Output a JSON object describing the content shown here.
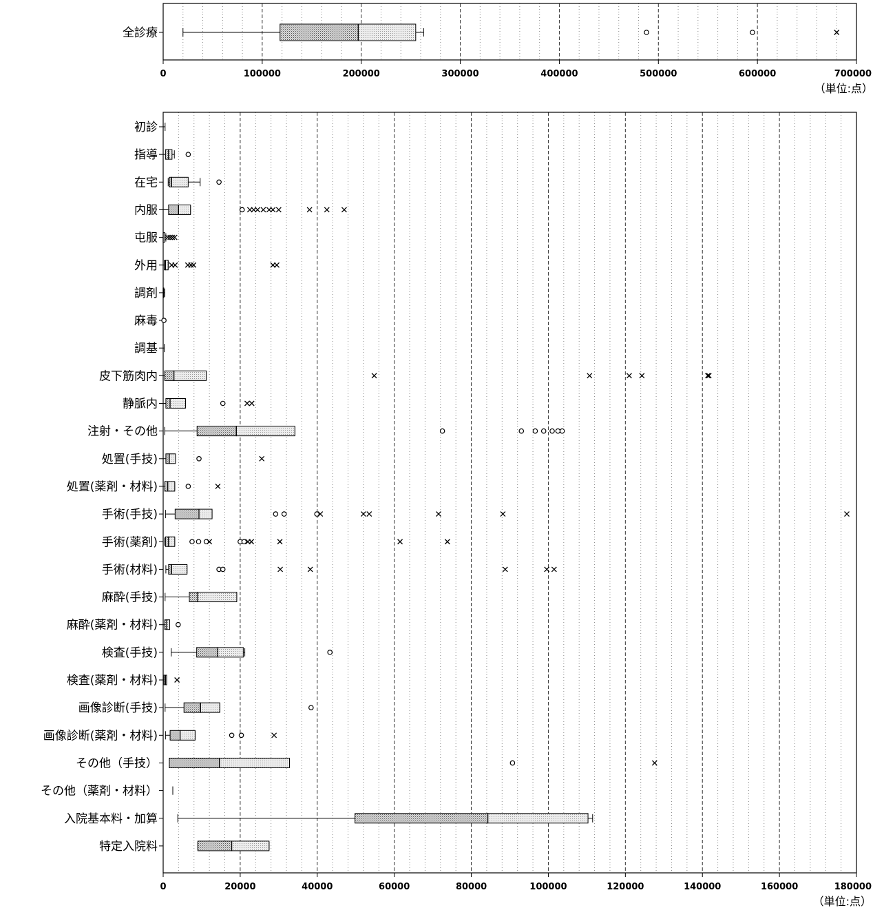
{
  "chart_data": [
    {
      "type": "boxplot",
      "unit_label": "（単位:点）",
      "xlim": [
        0,
        700000
      ],
      "ticks": [
        0,
        100000,
        200000,
        300000,
        400000,
        500000,
        600000,
        700000
      ],
      "categories": [
        {
          "label": "全診療",
          "whisker_low": 20000,
          "q1": 118000,
          "median": 197000,
          "q3": 255000,
          "whisker_high": 263000,
          "outliers_circle": [
            488000,
            595000
          ],
          "outliers_x": [
            680000
          ]
        }
      ]
    },
    {
      "type": "boxplot",
      "unit_label": "（単位:点）",
      "xlim": [
        0,
        180000
      ],
      "ticks": [
        0,
        20000,
        40000,
        60000,
        80000,
        100000,
        120000,
        140000,
        160000,
        180000
      ],
      "categories": [
        {
          "label": "初診",
          "whisker_low": 0,
          "q1": 0,
          "median": 0,
          "q3": 0,
          "whisker_high": 500,
          "outliers_circle": [],
          "outliers_x": []
        },
        {
          "label": "指導",
          "whisker_low": 0,
          "q1": 600,
          "median": 1400,
          "q3": 2300,
          "whisker_high": 2900,
          "outliers_circle": [
            6500
          ],
          "outliers_x": []
        },
        {
          "label": "在宅",
          "whisker_low": 1300,
          "q1": 1600,
          "median": 2200,
          "q3": 6500,
          "whisker_high": 9600,
          "outliers_circle": [
            14500
          ],
          "outliers_x": []
        },
        {
          "label": "内服",
          "whisker_low": 0,
          "q1": 1400,
          "median": 4000,
          "q3": 7100,
          "whisker_high": 7100,
          "outliers_circle": [
            20500
          ],
          "outliers_x": [
            22500,
            23500,
            24500,
            26000,
            27500,
            28500,
            30000,
            38000,
            42500,
            47000
          ]
        },
        {
          "label": "屯服",
          "whisker_low": 0,
          "q1": 0,
          "median": 0,
          "q3": 400,
          "whisker_high": 700,
          "outliers_circle": [],
          "outliers_x": [
            1200,
            1800,
            2400,
            3000
          ]
        },
        {
          "label": "外用",
          "whisker_low": 0,
          "q1": 300,
          "median": 600,
          "q3": 1300,
          "whisker_high": 1300,
          "outliers_circle": [],
          "outliers_x": [
            2200,
            3100,
            6400,
            7200,
            7900,
            28500,
            29500
          ]
        },
        {
          "label": "調剤",
          "whisker_low": 0,
          "q1": 0,
          "median": 0,
          "q3": 100,
          "whisker_high": 400,
          "outliers_circle": [],
          "outliers_x": []
        },
        {
          "label": "麻毒",
          "whisker_low": 0,
          "q1": 0,
          "median": 0,
          "q3": 0,
          "whisker_high": 0,
          "outliers_circle": [
            200
          ],
          "outliers_x": []
        },
        {
          "label": "調基",
          "whisker_low": 0,
          "q1": 0,
          "median": 0,
          "q3": 0,
          "whisker_high": 300,
          "outliers_circle": [],
          "outliers_x": []
        },
        {
          "label": "皮下筋肉内",
          "whisker_low": 0,
          "q1": 400,
          "median": 2800,
          "q3": 11200,
          "whisker_high": 11200,
          "outliers_circle": [],
          "outliers_x": [
            54800,
            110700,
            121000,
            124300,
            141400,
            141700
          ]
        },
        {
          "label": "静脈内",
          "whisker_low": 0,
          "q1": 700,
          "median": 1800,
          "q3": 5800,
          "whisker_high": 5800,
          "outliers_circle": [
            15500
          ],
          "outliers_x": [
            21800,
            23000
          ]
        },
        {
          "label": "注射・その他",
          "whisker_low": 400,
          "q1": 8800,
          "median": 19000,
          "q3": 34200,
          "whisker_high": 34200,
          "outliers_circle": [
            72500,
            93000,
            96600,
            98800,
            101000,
            102500,
            103600
          ],
          "outliers_x": []
        },
        {
          "label": "処置(手技)",
          "whisker_low": 0,
          "q1": 700,
          "median": 1600,
          "q3": 3200,
          "whisker_high": 3200,
          "outliers_circle": [
            9300
          ],
          "outliers_x": [
            25600
          ]
        },
        {
          "label": "処置(薬剤・材料)",
          "whisker_low": 0,
          "q1": 400,
          "median": 1200,
          "q3": 3000,
          "whisker_high": 3000,
          "outliers_circle": [
            6500
          ],
          "outliers_x": [
            14200
          ]
        },
        {
          "label": "手術(手技)",
          "whisker_low": 600,
          "q1": 3100,
          "median": 9300,
          "q3": 12700,
          "whisker_high": 12700,
          "outliers_circle": [
            29200,
            31400,
            39900
          ],
          "outliers_x": [
            40800,
            52000,
            53500,
            71500,
            88200,
            177500
          ]
        },
        {
          "label": "手術(薬剤)",
          "whisker_low": 400,
          "q1": 600,
          "median": 1400,
          "q3": 3000,
          "whisker_high": 3000,
          "outliers_circle": [
            7500,
            9200,
            11200,
            20000,
            21000
          ],
          "outliers_x": [
            12000,
            22000,
            22900,
            30300,
            61500,
            73800
          ]
        },
        {
          "label": "手術(材料)",
          "whisker_low": 700,
          "q1": 1400,
          "median": 2200,
          "q3": 6200,
          "whisker_high": 6200,
          "outliers_circle": [
            14500,
            15500
          ],
          "outliers_x": [
            30400,
            38200,
            88800,
            99600,
            101500
          ]
        },
        {
          "label": "麻酔(手技)",
          "whisker_low": 500,
          "q1": 6800,
          "median": 9000,
          "q3": 19100,
          "whisker_high": 19100,
          "outliers_circle": [],
          "outliers_x": []
        },
        {
          "label": "麻酔(薬剤・材料)",
          "whisker_low": 0,
          "q1": 400,
          "median": 900,
          "q3": 1700,
          "whisker_high": 1700,
          "outliers_circle": [
            3900
          ],
          "outliers_x": []
        },
        {
          "label": "検査(手技)",
          "whisker_low": 2100,
          "q1": 8700,
          "median": 14200,
          "q3": 20800,
          "whisker_high": 21200,
          "outliers_circle": [
            43300
          ],
          "outliers_x": []
        },
        {
          "label": "検査(薬剤・材料)",
          "whisker_low": 0,
          "q1": 200,
          "median": 600,
          "q3": 900,
          "whisker_high": 900,
          "outliers_circle": [],
          "outliers_x": [
            3600
          ]
        },
        {
          "label": "画像診断(手技)",
          "whisker_low": 500,
          "q1": 5400,
          "median": 9700,
          "q3": 14700,
          "whisker_high": 14700,
          "outliers_circle": [
            38400
          ],
          "outliers_x": []
        },
        {
          "label": "画像診断(薬剤・材料)",
          "whisker_low": 600,
          "q1": 1800,
          "median": 4400,
          "q3": 8300,
          "whisker_high": 8300,
          "outliers_circle": [
            17800,
            20300
          ],
          "outliers_x": [
            28800
          ]
        },
        {
          "label": "その他（手技）",
          "whisker_low": 1600,
          "q1": 1600,
          "median": 14600,
          "q3": 32800,
          "whisker_high": 32800,
          "outliers_circle": [
            90700
          ],
          "outliers_x": [
            127600
          ]
        },
        {
          "label": "その他（薬剤・材料）",
          "whisker_low": 2500,
          "q1": 2500,
          "median": 2500,
          "q3": 2500,
          "whisker_high": 2500,
          "outliers_circle": [],
          "outliers_x": []
        },
        {
          "label": "入院基本料・加算",
          "whisker_low": 3800,
          "q1": 49800,
          "median": 84300,
          "q3": 110300,
          "whisker_high": 111500,
          "outliers_circle": [],
          "outliers_x": []
        },
        {
          "label": "特定入院料",
          "whisker_low": 9000,
          "q1": 9000,
          "median": 17800,
          "q3": 27500,
          "whisker_high": 27500,
          "outliers_circle": [],
          "outliers_x": []
        }
      ]
    }
  ]
}
